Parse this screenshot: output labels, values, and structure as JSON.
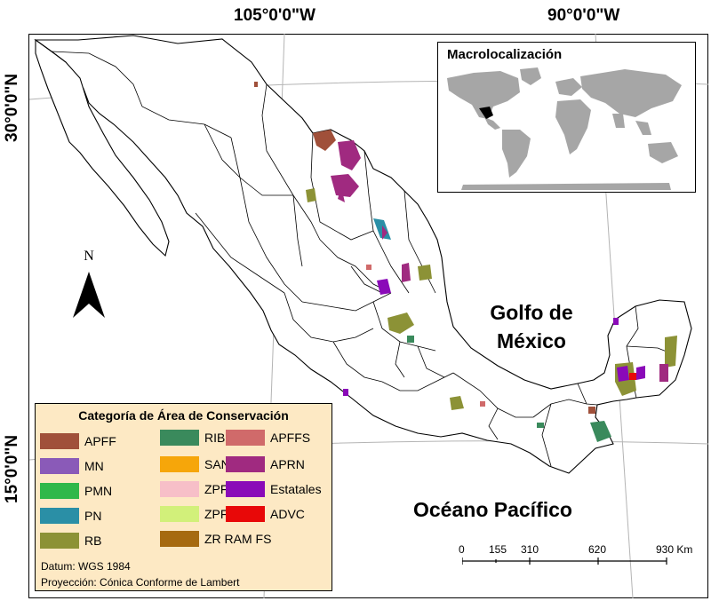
{
  "coords": {
    "top": [
      "105°0'0\"W",
      "90°0'0\"W"
    ],
    "left": [
      "30°0'0\"N",
      "15°0'0\"N"
    ]
  },
  "seas": {
    "gulf_line1": "Golfo de",
    "gulf_line2": "México",
    "pacific": "Océano Pacífico"
  },
  "inset": {
    "title": "Macrolocalización",
    "land_color": "#a6a6a6",
    "highlight_color": "#000000"
  },
  "legend": {
    "title": "Categoría de Área de Conservación",
    "items": [
      {
        "label": "APFF",
        "color": "#a0503a"
      },
      {
        "label": "MN",
        "color": "#8a5ab8"
      },
      {
        "label": "PMN",
        "color": "#2fb84a"
      },
      {
        "label": "PN",
        "color": "#2a8fa6"
      },
      {
        "label": "RB",
        "color": "#8c9236"
      },
      {
        "label": "RIB",
        "color": "#3a8a5c"
      },
      {
        "label": "SANT",
        "color": "#f6a60a"
      },
      {
        "label": "ZPFV",
        "color": "#f7bfc8"
      },
      {
        "label": "ZPF RFS",
        "color": "#d2f07a"
      },
      {
        "label": "ZR RAM FS",
        "color": "#a66a10"
      },
      {
        "label": "APFFS",
        "color": "#d06a6a"
      },
      {
        "label": "APRN",
        "color": "#a02a80"
      },
      {
        "label": "Estatales",
        "color": "#8a0ab8"
      },
      {
        "label": "ADVC",
        "color": "#e80808"
      }
    ],
    "datum": "Datum: WGS 1984",
    "projection": "Proyección: Cónica Conforme de Lambert"
  },
  "scale": {
    "ticks": [
      "0",
      "155",
      "310",
      "620",
      "930 Km"
    ]
  }
}
